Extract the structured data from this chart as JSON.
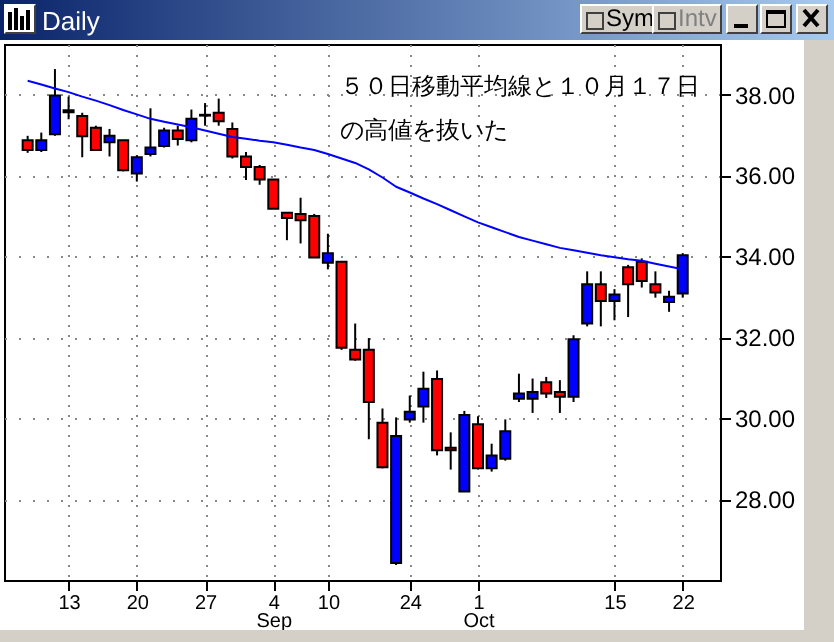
{
  "chart_data": {
    "type": "candlestick",
    "title": "Daily",
    "categories": [
      null,
      null,
      null,
      "13",
      null,
      null,
      null,
      null,
      "20",
      null,
      null,
      null,
      null,
      "27",
      null,
      null,
      null,
      null,
      "4",
      null,
      null,
      null,
      "10",
      null,
      null,
      null,
      null,
      null,
      "24",
      null,
      null,
      null,
      null,
      "1",
      null,
      null,
      null,
      null,
      null,
      null,
      null,
      null,
      null,
      "15",
      null,
      null,
      null,
      null,
      "22"
    ],
    "ohlc": [
      [
        36.87,
        36.98,
        36.56,
        36.63
      ],
      [
        36.63,
        37.06,
        36.58,
        36.87
      ],
      [
        37.02,
        38.63,
        36.98,
        37.98
      ],
      [
        37.61,
        37.95,
        37.39,
        37.56
      ],
      [
        37.47,
        37.55,
        36.45,
        36.97
      ],
      [
        37.18,
        37.23,
        36.63,
        36.63
      ],
      [
        36.82,
        37.15,
        36.47,
        36.98
      ],
      [
        36.87,
        36.87,
        36.1,
        36.13
      ],
      [
        36.05,
        36.5,
        35.85,
        36.45
      ],
      [
        36.53,
        37.66,
        36.47,
        36.69
      ],
      [
        36.73,
        37.18,
        36.69,
        37.11
      ],
      [
        37.11,
        37.23,
        36.74,
        36.9
      ],
      [
        36.87,
        37.63,
        36.82,
        37.4
      ],
      [
        37.5,
        37.79,
        37.23,
        37.48
      ],
      [
        37.55,
        37.9,
        37.23,
        37.34
      ],
      [
        37.15,
        37.31,
        36.42,
        36.47
      ],
      [
        36.47,
        36.58,
        35.89,
        36.21
      ],
      [
        36.21,
        36.26,
        35.77,
        35.9
      ],
      [
        35.9,
        35.9,
        35.18,
        35.18
      ],
      [
        35.08,
        35.08,
        34.4,
        34.95
      ],
      [
        35.05,
        35.45,
        34.32,
        34.89
      ],
      [
        35.0,
        35.05,
        33.97,
        33.97
      ],
      [
        33.84,
        34.56,
        33.68,
        34.08
      ],
      [
        33.87,
        33.87,
        31.69,
        31.74
      ],
      [
        31.69,
        32.34,
        31.42,
        31.45
      ],
      [
        31.69,
        31.98,
        29.48,
        30.4
      ],
      [
        29.89,
        30.24,
        28.76,
        28.79
      ],
      [
        26.42,
        30.02,
        26.37,
        29.56
      ],
      [
        29.97,
        30.56,
        29.89,
        30.16
      ],
      [
        30.29,
        31.15,
        29.89,
        30.73
      ],
      [
        30.97,
        31.18,
        29.08,
        29.21
      ],
      [
        29.27,
        29.65,
        28.73,
        29.21
      ],
      [
        28.19,
        30.18,
        28.19,
        30.08
      ],
      [
        29.85,
        30.05,
        28.73,
        28.76
      ],
      [
        28.76,
        29.37,
        28.68,
        29.08
      ],
      [
        29.0,
        29.97,
        28.95,
        29.68
      ],
      [
        30.48,
        31.1,
        30.4,
        30.61
      ],
      [
        30.48,
        30.98,
        30.13,
        30.65
      ],
      [
        30.89,
        31.02,
        30.5,
        30.61
      ],
      [
        30.65,
        30.94,
        30.13,
        30.53
      ],
      [
        30.53,
        32.05,
        30.4,
        31.95
      ],
      [
        32.34,
        33.63,
        32.27,
        33.31
      ],
      [
        33.31,
        33.63,
        32.27,
        32.9
      ],
      [
        32.9,
        33.19,
        32.42,
        33.06
      ],
      [
        33.73,
        33.79,
        32.5,
        33.31
      ],
      [
        33.87,
        33.95,
        33.23,
        33.39
      ],
      [
        33.31,
        33.63,
        32.98,
        33.11
      ],
      [
        32.87,
        33.15,
        32.63,
        33.0
      ],
      [
        33.08,
        34.08,
        32.98,
        34.03
      ]
    ],
    "colors": [
      "#ff0000",
      "#0000ff",
      "#0000ff",
      "#ff0000",
      "#ff0000",
      "#ff0000",
      "#0000ff",
      "#ff0000",
      "#0000ff",
      "#0000ff",
      "#0000ff",
      "#ff0000",
      "#0000ff",
      "#ff0000",
      "#ff0000",
      "#ff0000",
      "#ff0000",
      "#ff0000",
      "#ff0000",
      "#ff0000",
      "#ff0000",
      "#ff0000",
      "#0000ff",
      "#ff0000",
      "#ff0000",
      "#ff0000",
      "#ff0000",
      "#0000ff",
      "#0000ff",
      "#0000ff",
      "#ff0000",
      "#ff0000",
      "#0000ff",
      "#ff0000",
      "#0000ff",
      "#0000ff",
      "#0000ff",
      "#0000ff",
      "#ff0000",
      "#ff0000",
      "#0000ff",
      "#0000ff",
      "#ff0000",
      "#0000ff",
      "#ff0000",
      "#ff0000",
      "#ff0000",
      "#0000ff",
      "#0000ff"
    ],
    "series": [
      {
        "type": "line",
        "color": "#0000ff",
        "values": [
          38.34,
          38.25,
          38.15,
          38.06,
          37.95,
          37.85,
          37.74,
          37.62,
          37.51,
          37.4,
          37.33,
          37.26,
          37.19,
          37.11,
          37.03,
          36.95,
          36.91,
          36.86,
          36.82,
          36.76,
          36.69,
          36.63,
          36.53,
          36.42,
          36.31,
          36.15,
          35.95,
          35.72,
          35.58,
          35.43,
          35.29,
          35.14,
          34.99,
          34.84,
          34.72,
          34.6,
          34.48,
          34.39,
          34.3,
          34.21,
          34.15,
          34.09,
          34.03,
          33.98,
          33.93,
          33.89,
          33.82,
          33.75,
          33.68
        ]
      }
    ],
    "ylim": [
      26.0,
      39.25
    ],
    "yticks": [
      {
        "value": 28,
        "label": "28.00"
      },
      {
        "value": 30,
        "label": "30.00"
      },
      {
        "value": 32,
        "label": "32.00"
      },
      {
        "value": 34,
        "label": "34.00"
      },
      {
        "value": 36,
        "label": "36.00"
      },
      {
        "value": 38,
        "label": "38.00"
      }
    ],
    "grid": true,
    "annotations": [
      "５０日移動平均線と１０月１７日",
      "の高値を抜いた",
      "Sym",
      "Intv",
      "Sep",
      "Oct"
    ]
  }
}
